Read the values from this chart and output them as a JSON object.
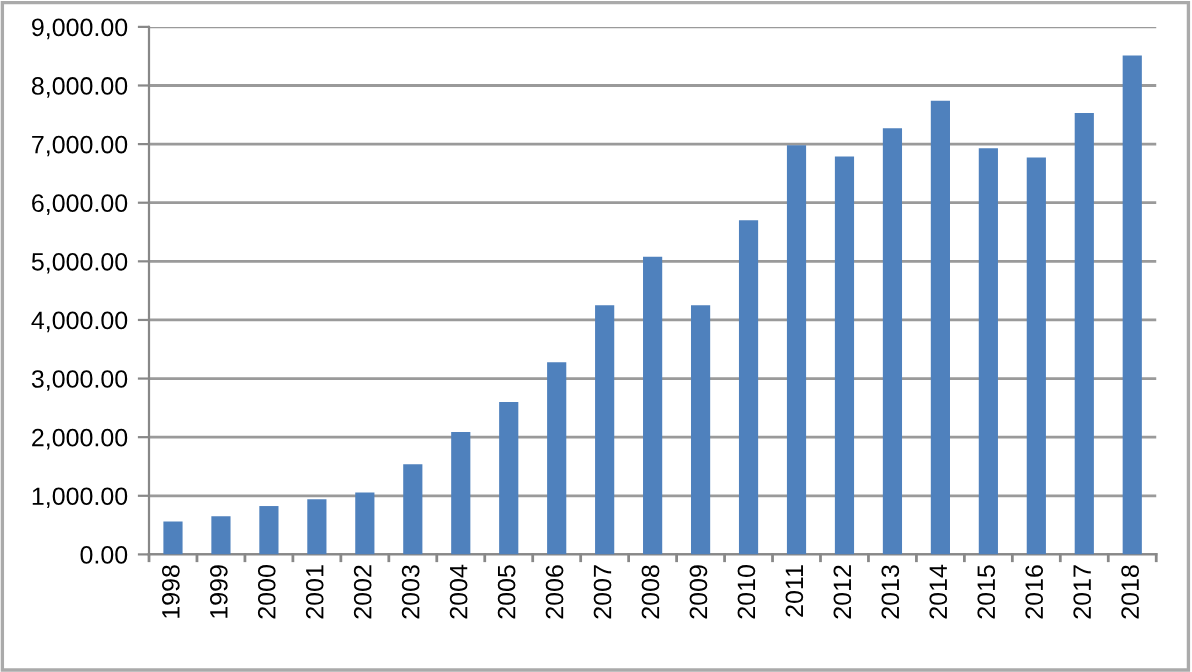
{
  "chart_data": {
    "type": "bar",
    "categories": [
      "1998",
      "1999",
      "2000",
      "2001",
      "2002",
      "2003",
      "2004",
      "2005",
      "2006",
      "2007",
      "2008",
      "2009",
      "2010",
      "2011",
      "2012",
      "2013",
      "2014",
      "2015",
      "2016",
      "2017",
      "2018"
    ],
    "values": [
      560,
      650,
      825,
      940,
      1055,
      1540,
      2090,
      2600,
      3280,
      4250,
      5080,
      4250,
      5700,
      6980,
      6790,
      7270,
      7740,
      6930,
      6770,
      7530,
      8510
    ],
    "color": "#4f81bd",
    "ylim": [
      0,
      9000
    ],
    "yticks": [
      {
        "value": 0,
        "label": "0.00"
      },
      {
        "value": 1000,
        "label": "1,000.00"
      },
      {
        "value": 2000,
        "label": "2,000.00"
      },
      {
        "value": 3000,
        "label": "3,000.00"
      },
      {
        "value": 4000,
        "label": "4,000.00"
      },
      {
        "value": 5000,
        "label": "5,000.00"
      },
      {
        "value": 6000,
        "label": "6,000.00"
      },
      {
        "value": 7000,
        "label": "7,000.00"
      },
      {
        "value": 8000,
        "label": "8,000.00"
      },
      {
        "value": 9000,
        "label": "9,000.00"
      }
    ],
    "grid": "y"
  }
}
